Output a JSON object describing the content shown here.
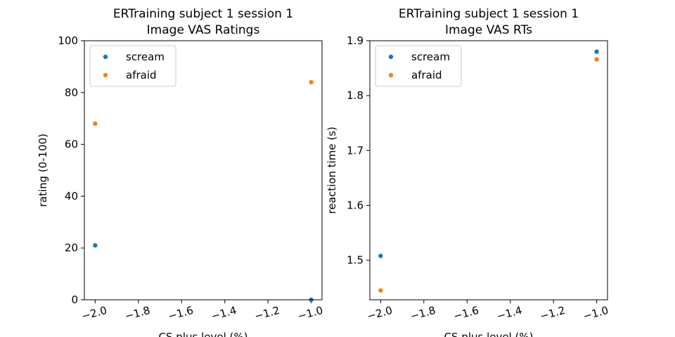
{
  "chart_data": [
    {
      "type": "scatter",
      "title": "ERTraining subject 1 session 1",
      "subtitle": "Image VAS Ratings",
      "xlabel": "CS plus level (%)",
      "ylabel": "rating (0-100)",
      "xlim": [
        -2.05,
        -0.95
      ],
      "ylim": [
        0,
        100
      ],
      "xticks": [
        -2.0,
        -1.8,
        -1.6,
        -1.4,
        -1.2,
        -1.0
      ],
      "xtick_labels": [
        "−2.0",
        "−1.8",
        "−1.6",
        "−1.4",
        "−1.2",
        "−1.0"
      ],
      "yticks": [
        0,
        20,
        40,
        60,
        80,
        100
      ],
      "ytick_labels": [
        "0",
        "20",
        "40",
        "60",
        "80",
        "100"
      ],
      "legend_position": "top-left",
      "grid": false,
      "series": [
        {
          "name": "scream",
          "color": "#1f77b4",
          "x": [
            -2.0,
            -1.0
          ],
          "y": [
            21,
            0
          ]
        },
        {
          "name": "afraid",
          "color": "#ff7f0e",
          "x": [
            -2.0,
            -1.0
          ],
          "y": [
            68,
            84
          ]
        }
      ]
    },
    {
      "type": "scatter",
      "title": "ERTraining subject 1 session 1",
      "subtitle": "Image VAS RTs",
      "xlabel": "CS plus level (%)",
      "ylabel": "reaction time (s)",
      "xlim": [
        -2.05,
        -0.95
      ],
      "ylim": [
        1.428,
        1.9
      ],
      "xticks": [
        -2.0,
        -1.8,
        -1.6,
        -1.4,
        -1.2,
        -1.0
      ],
      "xtick_labels": [
        "−2.0",
        "−1.8",
        "−1.6",
        "−1.4",
        "−1.2",
        "−1.0"
      ],
      "yticks": [
        1.5,
        1.6,
        1.7,
        1.8,
        1.9
      ],
      "ytick_labels": [
        "1.5",
        "1.6",
        "1.7",
        "1.8",
        "1.9"
      ],
      "legend_position": "top-left",
      "grid": false,
      "series": [
        {
          "name": "scream",
          "color": "#1f77b4",
          "x": [
            -2.0,
            -1.0
          ],
          "y": [
            1.508,
            1.88
          ]
        },
        {
          "name": "afraid",
          "color": "#ff7f0e",
          "x": [
            -2.0,
            -1.0
          ],
          "y": [
            1.445,
            1.866
          ]
        }
      ]
    }
  ]
}
